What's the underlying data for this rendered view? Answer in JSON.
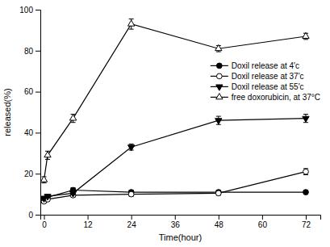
{
  "chart_data": {
    "type": "line",
    "xlabel": "Time(hour)",
    "ylabel": "released(%)",
    "xlim": [
      -1,
      76
    ],
    "ylim": [
      0,
      100
    ],
    "xticks": [
      0,
      12,
      24,
      36,
      48,
      60,
      72
    ],
    "yticks": [
      0,
      20,
      40,
      60,
      80,
      100
    ],
    "grid": false,
    "legend": "right",
    "x": [
      0,
      1,
      8,
      24,
      48,
      72
    ],
    "series": [
      {
        "name": "Doxil release at 4'c",
        "color": "black",
        "marker": "circle",
        "line_style": "solid",
        "values": [
          7.5,
          8.5,
          12,
          11,
          11,
          11
        ],
        "errors": [
          1.0,
          0.8,
          1.2,
          1.0,
          1.0,
          1.0
        ]
      },
      {
        "name": "Doxil release at 37'c",
        "color": "black",
        "marker": "circle-open",
        "line_style": "solid",
        "values": [
          6.5,
          7.5,
          9.5,
          10,
          10.5,
          21
        ],
        "errors": [
          0.8,
          0.8,
          0.8,
          1.0,
          1.0,
          1.5
        ]
      },
      {
        "name": "Doxil release at 55'c",
        "color": "black",
        "marker": "triangle-down",
        "line_style": "solid",
        "values": [
          8.0,
          9.0,
          10.5,
          33,
          46,
          47
        ],
        "errors": [
          1.0,
          0.8,
          0.8,
          1.5,
          2.0,
          2.0
        ]
      },
      {
        "name": "free doxorubicin, at 37°C",
        "color": "black",
        "marker": "triangle-up-open",
        "line_style": "solid",
        "values": [
          17,
          29,
          47,
          93,
          81,
          87
        ],
        "errors": [
          1.5,
          2.0,
          2.0,
          2.5,
          1.5,
          1.5
        ]
      }
    ]
  }
}
